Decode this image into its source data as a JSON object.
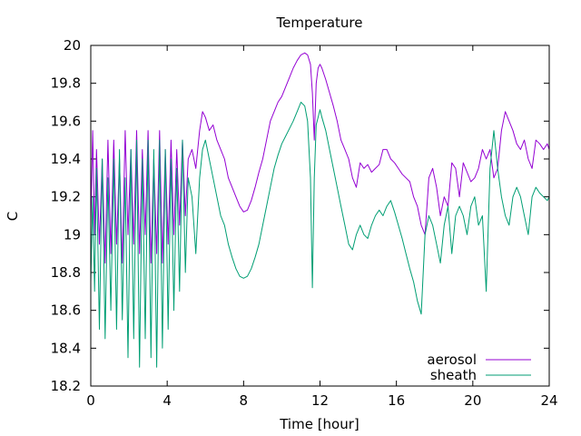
{
  "chart_data": {
    "type": "line",
    "title": "Temperature",
    "xlabel": "Time [hour]",
    "ylabel": "C",
    "xlim": [
      0,
      24
    ],
    "ylim": [
      18.2,
      20
    ],
    "xticks": [
      0,
      4,
      8,
      12,
      16,
      20,
      24
    ],
    "yticks": [
      18.2,
      18.4,
      18.6,
      18.8,
      19,
      19.2,
      19.4,
      19.6,
      19.8,
      20
    ],
    "ytick_labels": [
      "18.2",
      "18.4",
      "18.6",
      "18.8",
      "19",
      "19.2",
      "19.4",
      "19.6",
      "19.8",
      "20"
    ],
    "grid": false,
    "legend_position": "bottom-right",
    "series": [
      {
        "name": "aerosol",
        "color": "#9400d3",
        "x": [
          0,
          0.1,
          0.2,
          0.3,
          0.45,
          0.6,
          0.75,
          0.9,
          1.05,
          1.2,
          1.35,
          1.5,
          1.65,
          1.8,
          1.95,
          2.1,
          2.25,
          2.4,
          2.55,
          2.7,
          2.85,
          3.0,
          3.15,
          3.3,
          3.45,
          3.6,
          3.75,
          3.9,
          4.05,
          4.2,
          4.35,
          4.5,
          4.65,
          4.8,
          4.95,
          5.1,
          5.3,
          5.5,
          5.7,
          5.85,
          6.0,
          6.2,
          6.4,
          6.6,
          6.8,
          7.0,
          7.2,
          7.4,
          7.6,
          7.8,
          8.0,
          8.2,
          8.4,
          8.6,
          8.8,
          9.0,
          9.2,
          9.4,
          9.6,
          9.8,
          10.0,
          10.2,
          10.4,
          10.6,
          10.8,
          11.0,
          11.2,
          11.35,
          11.5,
          11.6,
          11.7,
          11.8,
          11.9,
          12.0,
          12.1,
          12.3,
          12.5,
          12.7,
          12.9,
          13.1,
          13.3,
          13.5,
          13.7,
          13.9,
          14.1,
          14.3,
          14.5,
          14.7,
          14.9,
          15.1,
          15.3,
          15.5,
          15.7,
          15.9,
          16.1,
          16.3,
          16.5,
          16.7,
          16.9,
          17.1,
          17.3,
          17.5,
          17.7,
          17.9,
          18.1,
          18.3,
          18.5,
          18.7,
          18.9,
          19.1,
          19.3,
          19.5,
          19.7,
          19.9,
          20.1,
          20.3,
          20.5,
          20.7,
          20.9,
          21.1,
          21.3,
          21.5,
          21.7,
          21.9,
          22.1,
          22.3,
          22.5,
          22.7,
          22.9,
          23.1,
          23.3,
          23.5,
          23.7,
          23.9,
          24.0
        ],
        "y": [
          19.05,
          19.55,
          19.0,
          19.45,
          18.95,
          19.4,
          18.85,
          19.5,
          18.9,
          19.5,
          18.95,
          19.4,
          18.85,
          19.55,
          19.0,
          19.45,
          18.95,
          19.55,
          18.9,
          19.45,
          19.0,
          19.55,
          18.85,
          19.4,
          18.9,
          19.55,
          18.85,
          19.45,
          18.95,
          19.5,
          19.0,
          19.45,
          19.05,
          19.5,
          19.1,
          19.4,
          19.45,
          19.35,
          19.55,
          19.65,
          19.62,
          19.55,
          19.58,
          19.5,
          19.45,
          19.4,
          19.3,
          19.25,
          19.2,
          19.15,
          19.12,
          19.13,
          19.18,
          19.25,
          19.33,
          19.4,
          19.5,
          19.6,
          19.65,
          19.7,
          19.73,
          19.78,
          19.83,
          19.88,
          19.92,
          19.95,
          19.96,
          19.95,
          19.9,
          19.75,
          19.5,
          19.8,
          19.88,
          19.9,
          19.88,
          19.82,
          19.75,
          19.68,
          19.6,
          19.5,
          19.45,
          19.4,
          19.3,
          19.25,
          19.38,
          19.35,
          19.37,
          19.33,
          19.35,
          19.37,
          19.45,
          19.45,
          19.4,
          19.38,
          19.35,
          19.32,
          19.3,
          19.28,
          19.2,
          19.15,
          19.05,
          19.0,
          19.3,
          19.35,
          19.25,
          19.1,
          19.2,
          19.15,
          19.38,
          19.35,
          19.2,
          19.38,
          19.33,
          19.28,
          19.3,
          19.35,
          19.45,
          19.4,
          19.45,
          19.3,
          19.35,
          19.55,
          19.65,
          19.6,
          19.55,
          19.48,
          19.45,
          19.5,
          19.4,
          19.35,
          19.5,
          19.48,
          19.45,
          19.48,
          19.45
        ]
      },
      {
        "name": "sheath",
        "color": "#009e73",
        "x": [
          0,
          0.1,
          0.2,
          0.3,
          0.45,
          0.6,
          0.75,
          0.9,
          1.05,
          1.2,
          1.35,
          1.5,
          1.65,
          1.8,
          1.95,
          2.1,
          2.25,
          2.4,
          2.55,
          2.7,
          2.85,
          3.0,
          3.15,
          3.3,
          3.45,
          3.6,
          3.75,
          3.9,
          4.05,
          4.2,
          4.35,
          4.5,
          4.65,
          4.8,
          4.95,
          5.1,
          5.3,
          5.5,
          5.7,
          5.85,
          6.0,
          6.2,
          6.4,
          6.6,
          6.8,
          7.0,
          7.2,
          7.4,
          7.6,
          7.8,
          8.0,
          8.2,
          8.4,
          8.6,
          8.8,
          9.0,
          9.2,
          9.4,
          9.6,
          9.8,
          10.0,
          10.2,
          10.4,
          10.6,
          10.8,
          11.0,
          11.2,
          11.35,
          11.5,
          11.6,
          11.7,
          11.8,
          11.9,
          12.0,
          12.1,
          12.3,
          12.5,
          12.7,
          12.9,
          13.1,
          13.3,
          13.5,
          13.7,
          13.9,
          14.1,
          14.3,
          14.5,
          14.7,
          14.9,
          15.1,
          15.3,
          15.5,
          15.7,
          15.9,
          16.1,
          16.3,
          16.5,
          16.7,
          16.9,
          17.1,
          17.3,
          17.5,
          17.7,
          17.9,
          18.1,
          18.3,
          18.5,
          18.7,
          18.9,
          19.1,
          19.3,
          19.5,
          19.7,
          19.9,
          20.1,
          20.3,
          20.5,
          20.7,
          20.9,
          21.1,
          21.3,
          21.5,
          21.7,
          21.9,
          22.1,
          22.3,
          22.5,
          22.7,
          22.9,
          23.1,
          23.3,
          23.5,
          23.7,
          23.9,
          24.0
        ],
        "y": [
          18.75,
          19.2,
          18.7,
          19.35,
          18.5,
          19.4,
          18.45,
          19.3,
          18.6,
          19.4,
          18.5,
          19.45,
          18.55,
          19.3,
          18.35,
          19.45,
          18.45,
          19.5,
          18.3,
          19.4,
          18.45,
          19.5,
          18.35,
          19.45,
          18.3,
          19.5,
          18.4,
          19.45,
          18.5,
          19.4,
          18.6,
          19.35,
          18.7,
          19.5,
          18.8,
          19.3,
          19.2,
          18.9,
          19.3,
          19.45,
          19.5,
          19.4,
          19.3,
          19.2,
          19.1,
          19.05,
          18.95,
          18.88,
          18.82,
          18.78,
          18.77,
          18.78,
          18.82,
          18.88,
          18.95,
          19.05,
          19.15,
          19.25,
          19.35,
          19.42,
          19.48,
          19.52,
          19.56,
          19.6,
          19.65,
          19.7,
          19.68,
          19.6,
          19.3,
          18.72,
          19.3,
          19.58,
          19.62,
          19.66,
          19.62,
          19.55,
          19.45,
          19.35,
          19.25,
          19.15,
          19.05,
          18.95,
          18.92,
          19.0,
          19.05,
          19.0,
          18.98,
          19.05,
          19.1,
          19.13,
          19.1,
          19.15,
          19.18,
          19.12,
          19.05,
          18.98,
          18.9,
          18.82,
          18.75,
          18.65,
          18.58,
          19.0,
          19.1,
          19.05,
          18.95,
          18.85,
          19.05,
          19.15,
          18.9,
          19.1,
          19.15,
          19.1,
          19.0,
          19.15,
          19.2,
          19.05,
          19.1,
          18.7,
          19.35,
          19.55,
          19.35,
          19.2,
          19.1,
          19.05,
          19.2,
          19.25,
          19.2,
          19.1,
          19.0,
          19.2,
          19.25,
          19.22,
          19.2,
          19.18,
          19.2
        ]
      }
    ]
  }
}
